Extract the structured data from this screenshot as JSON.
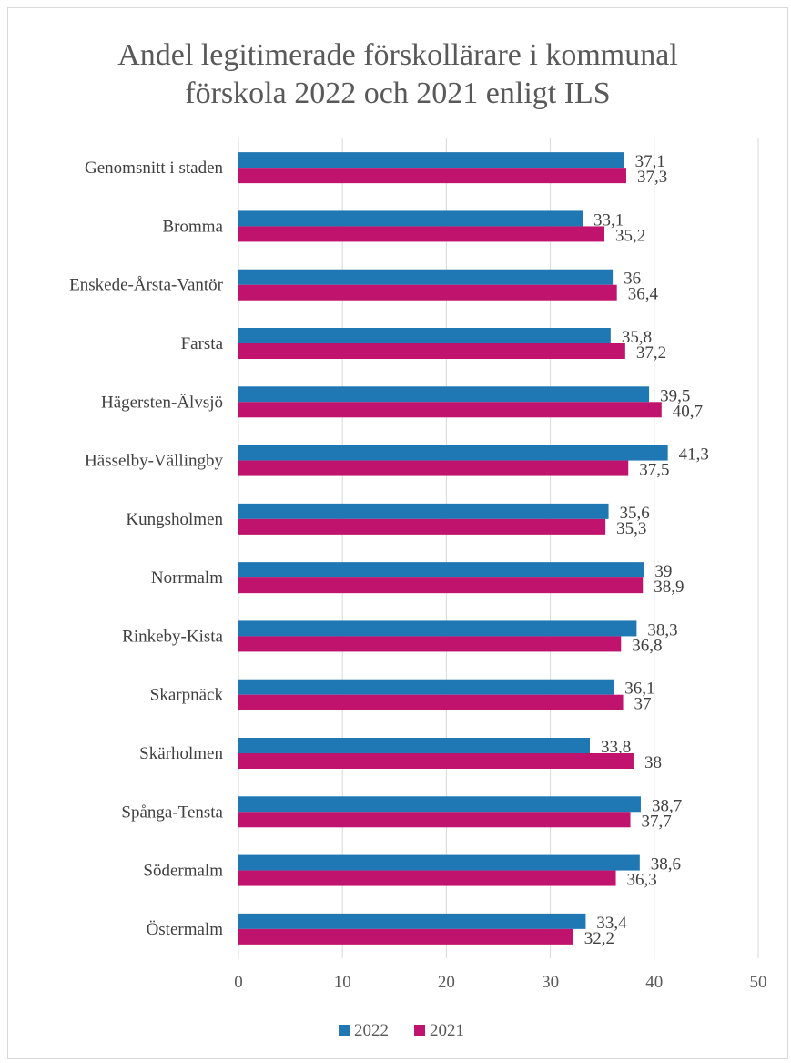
{
  "chart_data": {
    "type": "bar",
    "orientation": "horizontal",
    "title": "Andel legitimerade förskollärare i kommunal förskola 2022 och 2021 enligt ILS",
    "title_lines": [
      "Andel legitimerade förskollärare i kommunal",
      "förskola 2022 och 2021 enligt ILS"
    ],
    "categories": [
      "Genomsnitt i staden",
      "Bromma",
      "Enskede-Årsta-Vantör",
      "Farsta",
      "Hägersten-Älvsjö",
      "Hässelby-Vällingby",
      "Kungsholmen",
      "Norrmalm",
      "Rinkeby-Kista",
      "Skarpnäck",
      "Skärholmen",
      "Spånga-Tensta",
      "Södermalm",
      "Östermalm"
    ],
    "series": [
      {
        "name": "2022",
        "color": "#1f77b4",
        "values": [
          37.1,
          33.1,
          36,
          35.8,
          39.5,
          41.3,
          35.6,
          39,
          38.3,
          36.1,
          33.8,
          38.7,
          38.6,
          33.4
        ],
        "labels": [
          "37,1",
          "33,1",
          "36",
          "35,8",
          "39,5",
          "41,3",
          "35,6",
          "39",
          "38,3",
          "36,1",
          "33,8",
          "38,7",
          "38,6",
          "33,4"
        ]
      },
      {
        "name": "2021",
        "color": "#c0136e",
        "values": [
          37.3,
          35.2,
          36.4,
          37.2,
          40.7,
          37.5,
          35.3,
          38.9,
          36.8,
          37,
          38,
          37.7,
          36.3,
          32.2
        ],
        "labels": [
          "37,3",
          "35,2",
          "36,4",
          "37,2",
          "40,7",
          "37,5",
          "35,3",
          "38,9",
          "36,8",
          "37",
          "38",
          "37,7",
          "36,3",
          "32,2"
        ]
      }
    ],
    "xlim": [
      0,
      50
    ],
    "xticks": [
      0,
      10,
      20,
      30,
      40,
      50
    ],
    "xtick_labels": [
      "0",
      "10",
      "20",
      "30",
      "40",
      "50"
    ],
    "grid": true,
    "legend_position": "bottom"
  }
}
